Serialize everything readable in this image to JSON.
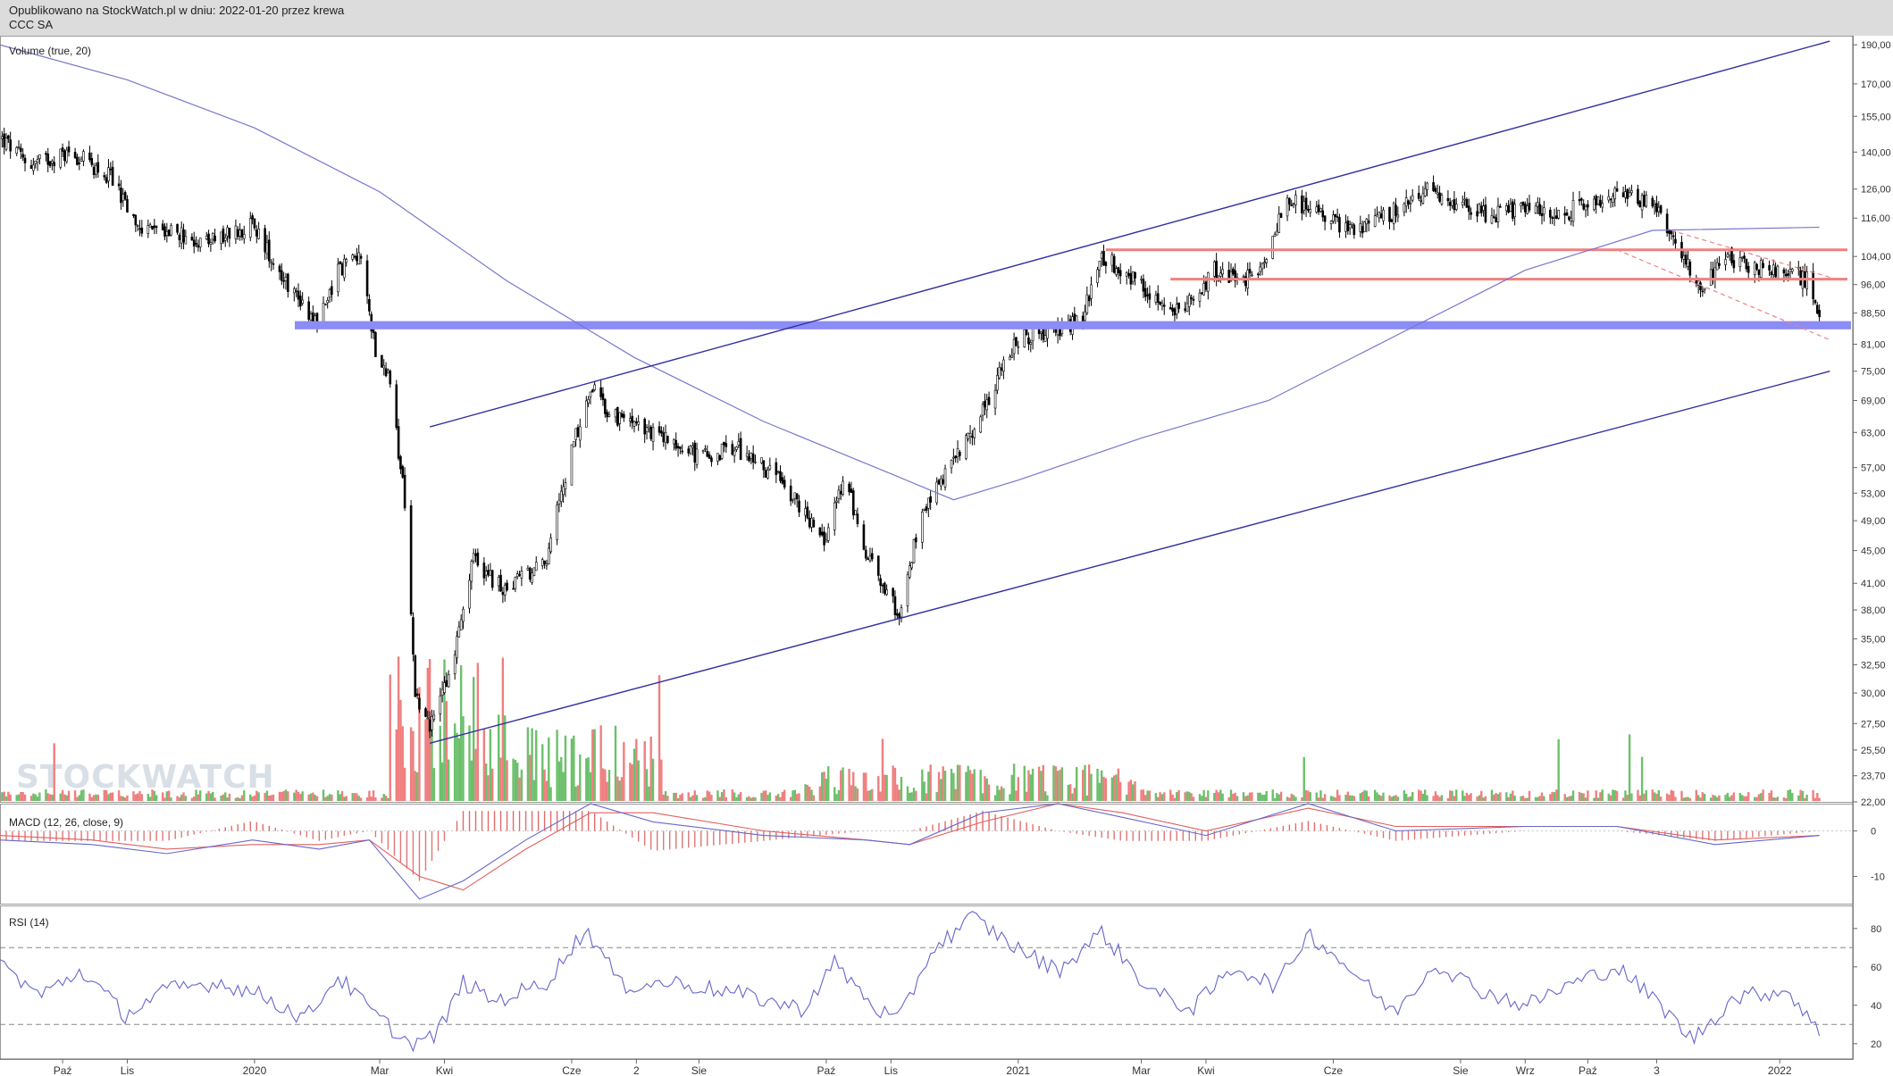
{
  "header": {
    "published": "Opublikowano na StockWatch.pl w dniu: 2022-01-20 przez krewa",
    "instrument": "CCC SA"
  },
  "watermark": "STOCKWATCH",
  "colors": {
    "candle": "#000000",
    "volume_up": "#6cc06c",
    "volume_down": "#ef7f7f",
    "trendline": "#3030a0",
    "moving_average": "#7777cc",
    "support_band": "#8c8cf5",
    "resistance": "#f08080",
    "macd": "#6666cc",
    "signal": "#e06060",
    "rsi": "#6666cc",
    "header_bg": "#dcdcdc"
  },
  "chart_data": {
    "type": "candlestick",
    "panes": [
      {
        "name": "price",
        "label": "Volume (true, 20)",
        "yscale": "log",
        "ylim": [
          22,
          195
        ],
        "y_ticks": [
          "190,00",
          "170,00",
          "155,00",
          "140,00",
          "126,00",
          "116,00",
          "104,00",
          "96,00",
          "88,50",
          "81,00",
          "75,00",
          "69,00",
          "63,00",
          "57,00",
          "53,00",
          "49,00",
          "45,00",
          "41,00",
          "38,00",
          "35,00",
          "32,50",
          "30,00",
          "27,50",
          "25,50",
          "23,70",
          "22,00"
        ],
        "close_path": [
          {
            "d": "2019-09-01",
            "v": 146
          },
          {
            "d": "2019-09-15",
            "v": 135
          },
          {
            "d": "2019-10-05",
            "v": 140
          },
          {
            "d": "2019-10-25",
            "v": 130
          },
          {
            "d": "2019-11-05",
            "v": 113
          },
          {
            "d": "2019-11-20",
            "v": 112
          },
          {
            "d": "2019-12-10",
            "v": 108
          },
          {
            "d": "2019-12-31",
            "v": 114
          },
          {
            "d": "2020-01-15",
            "v": 98
          },
          {
            "d": "2020-01-31",
            "v": 86
          },
          {
            "d": "2020-02-10",
            "v": 100
          },
          {
            "d": "2020-02-20",
            "v": 105
          },
          {
            "d": "2020-02-28",
            "v": 80
          },
          {
            "d": "2020-03-05",
            "v": 74
          },
          {
            "d": "2020-03-12",
            "v": 55
          },
          {
            "d": "2020-03-18",
            "v": 30
          },
          {
            "d": "2020-03-25",
            "v": 27
          },
          {
            "d": "2020-04-05",
            "v": 33
          },
          {
            "d": "2020-04-15",
            "v": 44
          },
          {
            "d": "2020-04-30",
            "v": 40
          },
          {
            "d": "2020-05-20",
            "v": 44
          },
          {
            "d": "2020-06-01",
            "v": 60
          },
          {
            "d": "2020-06-10",
            "v": 72
          },
          {
            "d": "2020-06-20",
            "v": 66
          },
          {
            "d": "2020-07-10",
            "v": 63
          },
          {
            "d": "2020-08-01",
            "v": 59
          },
          {
            "d": "2020-08-20",
            "v": 60
          },
          {
            "d": "2020-09-10",
            "v": 55
          },
          {
            "d": "2020-09-30",
            "v": 46
          },
          {
            "d": "2020-10-10",
            "v": 56
          },
          {
            "d": "2020-10-20",
            "v": 44
          },
          {
            "d": "2020-10-31",
            "v": 40
          },
          {
            "d": "2020-11-05",
            "v": 37
          },
          {
            "d": "2020-11-15",
            "v": 50
          },
          {
            "d": "2020-11-30",
            "v": 58
          },
          {
            "d": "2020-12-15",
            "v": 67
          },
          {
            "d": "2020-12-31",
            "v": 82
          },
          {
            "d": "2021-01-15",
            "v": 84
          },
          {
            "d": "2021-01-31",
            "v": 86
          },
          {
            "d": "2021-02-10",
            "v": 104
          },
          {
            "d": "2021-02-20",
            "v": 100
          },
          {
            "d": "2021-03-05",
            "v": 94
          },
          {
            "d": "2021-03-20",
            "v": 88
          },
          {
            "d": "2021-04-05",
            "v": 100
          },
          {
            "d": "2021-04-25",
            "v": 97
          },
          {
            "d": "2021-05-10",
            "v": 122
          },
          {
            "d": "2021-05-25",
            "v": 118
          },
          {
            "d": "2021-06-10",
            "v": 112
          },
          {
            "d": "2021-06-30",
            "v": 118
          },
          {
            "d": "2021-07-15",
            "v": 126
          },
          {
            "d": "2021-07-31",
            "v": 121
          },
          {
            "d": "2021-08-15",
            "v": 117
          },
          {
            "d": "2021-08-31",
            "v": 119
          },
          {
            "d": "2021-09-20",
            "v": 118
          },
          {
            "d": "2021-10-05",
            "v": 122
          },
          {
            "d": "2021-10-20",
            "v": 125
          },
          {
            "d": "2021-11-05",
            "v": 118
          },
          {
            "d": "2021-11-15",
            "v": 105
          },
          {
            "d": "2021-11-25",
            "v": 95
          },
          {
            "d": "2021-12-05",
            "v": 104
          },
          {
            "d": "2021-12-20",
            "v": 101
          },
          {
            "d": "2022-01-05",
            "v": 100
          },
          {
            "d": "2022-01-15",
            "v": 97
          },
          {
            "d": "2022-01-20",
            "v": 86
          }
        ],
        "moving_average": [
          {
            "d": "2019-09-01",
            "v": 190
          },
          {
            "d": "2019-11-01",
            "v": 172
          },
          {
            "d": "2020-01-01",
            "v": 150
          },
          {
            "d": "2020-03-01",
            "v": 125
          },
          {
            "d": "2020-05-01",
            "v": 97
          },
          {
            "d": "2020-07-01",
            "v": 78
          },
          {
            "d": "2020-09-01",
            "v": 65
          },
          {
            "d": "2020-11-01",
            "v": 56
          },
          {
            "d": "2020-12-01",
            "v": 52
          },
          {
            "d": "2021-01-01",
            "v": 55
          },
          {
            "d": "2021-03-01",
            "v": 62
          },
          {
            "d": "2021-05-01",
            "v": 69
          },
          {
            "d": "2021-07-01",
            "v": 83
          },
          {
            "d": "2021-09-01",
            "v": 100
          },
          {
            "d": "2021-11-01",
            "v": 112
          },
          {
            "d": "2022-01-20",
            "v": 113
          }
        ],
        "trendlines": [
          {
            "kind": "upper",
            "from": {
              "d": "2020-03-25",
              "v": 64
            },
            "to": {
              "d": "2022-01-25",
              "v": 192
            }
          },
          {
            "kind": "lower",
            "from": {
              "d": "2020-03-25",
              "v": 26
            },
            "to": {
              "d": "2022-01-25",
              "v": 75
            }
          },
          {
            "kind": "dashed",
            "from": {
              "d": "2021-11-10",
              "v": 112
            },
            "to": {
              "d": "2022-01-25",
              "v": 98
            }
          },
          {
            "kind": "dashed",
            "from": {
              "d": "2021-10-15",
              "v": 106
            },
            "to": {
              "d": "2022-01-25",
              "v": 82
            }
          }
        ],
        "support_band": [
          84.5,
          86.5
        ],
        "resistance_lines": [
          106,
          97.5
        ]
      },
      {
        "name": "macd",
        "label": "MACD (12, 26, close, 9)",
        "y_ticks": [
          "0",
          "-10"
        ],
        "macd": [
          {
            "d": "2019-09-01",
            "v": -2
          },
          {
            "d": "2019-10-15",
            "v": -3
          },
          {
            "d": "2019-11-20",
            "v": -5
          },
          {
            "d": "2019-12-31",
            "v": -2
          },
          {
            "d": "2020-02-01",
            "v": -4
          },
          {
            "d": "2020-02-25",
            "v": -2
          },
          {
            "d": "2020-03-20",
            "v": -15
          },
          {
            "d": "2020-04-10",
            "v": -11
          },
          {
            "d": "2020-05-10",
            "v": -2
          },
          {
            "d": "2020-06-10",
            "v": 6
          },
          {
            "d": "2020-07-10",
            "v": 2
          },
          {
            "d": "2020-09-01",
            "v": -1
          },
          {
            "d": "2020-10-20",
            "v": -2
          },
          {
            "d": "2020-11-10",
            "v": -3
          },
          {
            "d": "2020-12-15",
            "v": 4
          },
          {
            "d": "2021-01-20",
            "v": 6
          },
          {
            "d": "2021-02-20",
            "v": 3
          },
          {
            "d": "2021-04-01",
            "v": -1
          },
          {
            "d": "2021-05-20",
            "v": 6
          },
          {
            "d": "2021-07-01",
            "v": 0
          },
          {
            "d": "2021-09-01",
            "v": 1
          },
          {
            "d": "2021-10-15",
            "v": 1
          },
          {
            "d": "2021-12-01",
            "v": -3
          },
          {
            "d": "2022-01-20",
            "v": -1
          }
        ],
        "signal": [
          {
            "d": "2019-09-01",
            "v": -1
          },
          {
            "d": "2019-10-15",
            "v": -2
          },
          {
            "d": "2019-11-20",
            "v": -4
          },
          {
            "d": "2019-12-31",
            "v": -3
          },
          {
            "d": "2020-02-01",
            "v": -3
          },
          {
            "d": "2020-02-25",
            "v": -2
          },
          {
            "d": "2020-03-20",
            "v": -10
          },
          {
            "d": "2020-04-10",
            "v": -13
          },
          {
            "d": "2020-05-10",
            "v": -4
          },
          {
            "d": "2020-06-10",
            "v": 4
          },
          {
            "d": "2020-07-10",
            "v": 4
          },
          {
            "d": "2020-09-01",
            "v": 0
          },
          {
            "d": "2020-10-20",
            "v": -2
          },
          {
            "d": "2020-11-10",
            "v": -3
          },
          {
            "d": "2020-12-15",
            "v": 2
          },
          {
            "d": "2021-01-20",
            "v": 6
          },
          {
            "d": "2021-02-20",
            "v": 4
          },
          {
            "d": "2021-04-01",
            "v": 0
          },
          {
            "d": "2021-05-20",
            "v": 5
          },
          {
            "d": "2021-07-01",
            "v": 1
          },
          {
            "d": "2021-09-01",
            "v": 1
          },
          {
            "d": "2021-10-15",
            "v": 1
          },
          {
            "d": "2021-12-01",
            "v": -2
          },
          {
            "d": "2022-01-20",
            "v": -1
          }
        ]
      },
      {
        "name": "rsi",
        "label": "RSI (14)",
        "y_ticks": [
          "80",
          "60",
          "40",
          "20"
        ],
        "reference_levels": [
          70,
          30
        ],
        "values": [
          {
            "d": "2019-09-01",
            "v": 62
          },
          {
            "d": "2019-09-20",
            "v": 45
          },
          {
            "d": "2019-10-10",
            "v": 58
          },
          {
            "d": "2019-10-31",
            "v": 35
          },
          {
            "d": "2019-11-20",
            "v": 48
          },
          {
            "d": "2019-12-15",
            "v": 52
          },
          {
            "d": "2020-01-05",
            "v": 45
          },
          {
            "d": "2020-01-25",
            "v": 33
          },
          {
            "d": "2020-02-10",
            "v": 55
          },
          {
            "d": "2020-02-28",
            "v": 35
          },
          {
            "d": "2020-03-15",
            "v": 20
          },
          {
            "d": "2020-03-28",
            "v": 24
          },
          {
            "d": "2020-04-10",
            "v": 52
          },
          {
            "d": "2020-04-25",
            "v": 42
          },
          {
            "d": "2020-05-20",
            "v": 52
          },
          {
            "d": "2020-06-08",
            "v": 80
          },
          {
            "d": "2020-06-25",
            "v": 50
          },
          {
            "d": "2020-07-20",
            "v": 52
          },
          {
            "d": "2020-08-20",
            "v": 46
          },
          {
            "d": "2020-09-20",
            "v": 38
          },
          {
            "d": "2020-10-05",
            "v": 62
          },
          {
            "d": "2020-10-25",
            "v": 38
          },
          {
            "d": "2020-11-05",
            "v": 32
          },
          {
            "d": "2020-11-20",
            "v": 68
          },
          {
            "d": "2020-12-10",
            "v": 86
          },
          {
            "d": "2020-12-31",
            "v": 70
          },
          {
            "d": "2021-01-20",
            "v": 58
          },
          {
            "d": "2021-02-10",
            "v": 78
          },
          {
            "d": "2021-03-05",
            "v": 48
          },
          {
            "d": "2021-03-25",
            "v": 38
          },
          {
            "d": "2021-04-15",
            "v": 60
          },
          {
            "d": "2021-05-05",
            "v": 50
          },
          {
            "d": "2021-05-20",
            "v": 78
          },
          {
            "d": "2021-06-10",
            "v": 58
          },
          {
            "d": "2021-06-30",
            "v": 36
          },
          {
            "d": "2021-07-20",
            "v": 62
          },
          {
            "d": "2021-08-10",
            "v": 48
          },
          {
            "d": "2021-09-01",
            "v": 40
          },
          {
            "d": "2021-09-25",
            "v": 52
          },
          {
            "d": "2021-10-15",
            "v": 60
          },
          {
            "d": "2021-11-05",
            "v": 40
          },
          {
            "d": "2021-11-20",
            "v": 22
          },
          {
            "d": "2021-12-10",
            "v": 44
          },
          {
            "d": "2022-01-05",
            "v": 48
          },
          {
            "d": "2022-01-20",
            "v": 25
          }
        ]
      }
    ],
    "x_ticks": [
      {
        "label": "Paź",
        "d": "2019-10-01"
      },
      {
        "label": "Lis",
        "d": "2019-11-01"
      },
      {
        "label": "2020",
        "d": "2020-01-01"
      },
      {
        "label": "Mar",
        "d": "2020-03-01"
      },
      {
        "label": "Kwi",
        "d": "2020-04-01"
      },
      {
        "label": "Cze",
        "d": "2020-06-01"
      },
      {
        "label": "2",
        "d": "2020-07-02"
      },
      {
        "label": "Sie",
        "d": "2020-08-01"
      },
      {
        "label": "Paź",
        "d": "2020-10-01"
      },
      {
        "label": "Lis",
        "d": "2020-11-01"
      },
      {
        "label": "2021",
        "d": "2021-01-01"
      },
      {
        "label": "Mar",
        "d": "2021-03-01"
      },
      {
        "label": "Kwi",
        "d": "2021-04-01"
      },
      {
        "label": "Cze",
        "d": "2021-06-01"
      },
      {
        "label": "Sie",
        "d": "2021-08-01"
      },
      {
        "label": "Wrz",
        "d": "2021-09-01"
      },
      {
        "label": "Paź",
        "d": "2021-10-01"
      },
      {
        "label": "3",
        "d": "2021-11-03"
      },
      {
        "label": "2022",
        "d": "2022-01-01"
      }
    ]
  }
}
